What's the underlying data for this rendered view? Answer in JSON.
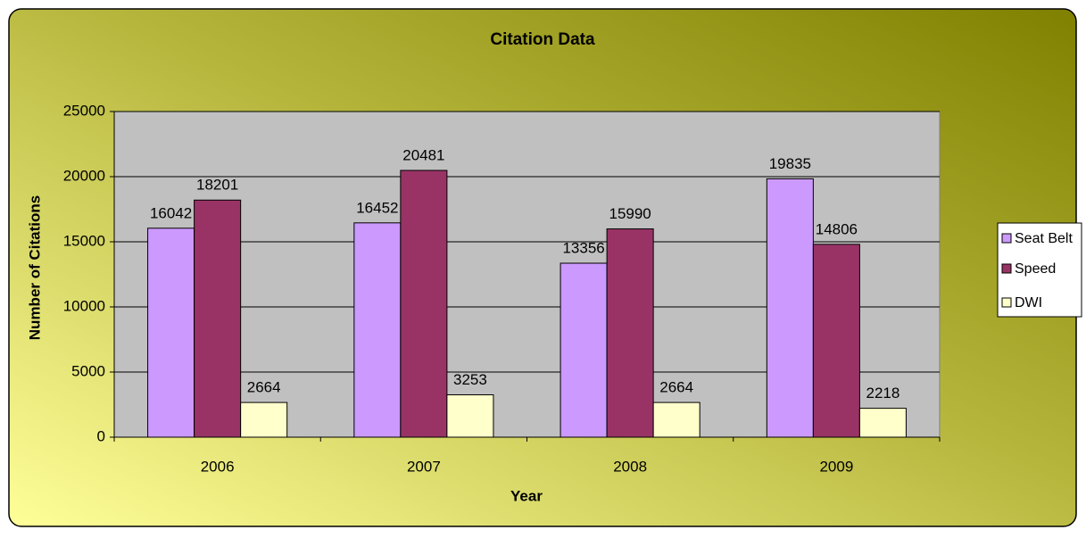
{
  "chart_data": {
    "type": "bar",
    "title": "Citation Data",
    "x_label": "Year",
    "y_label": "Number of Citations",
    "categories": [
      "2006",
      "2007",
      "2008",
      "2009"
    ],
    "series": [
      {
        "name": "Seat Belt",
        "color": "#cc99ff",
        "values": [
          16042,
          16452,
          13356,
          19835
        ]
      },
      {
        "name": "Speed",
        "color": "#993366",
        "values": [
          18201,
          20481,
          15990,
          14806
        ]
      },
      {
        "name": "DWI",
        "color": "#ffffcc",
        "values": [
          2664,
          3253,
          2664,
          2218
        ]
      }
    ],
    "ylim": [
      0,
      25000
    ],
    "yticks": [
      0,
      5000,
      10000,
      15000,
      20000,
      25000
    ],
    "grid": true,
    "legend": "right"
  }
}
